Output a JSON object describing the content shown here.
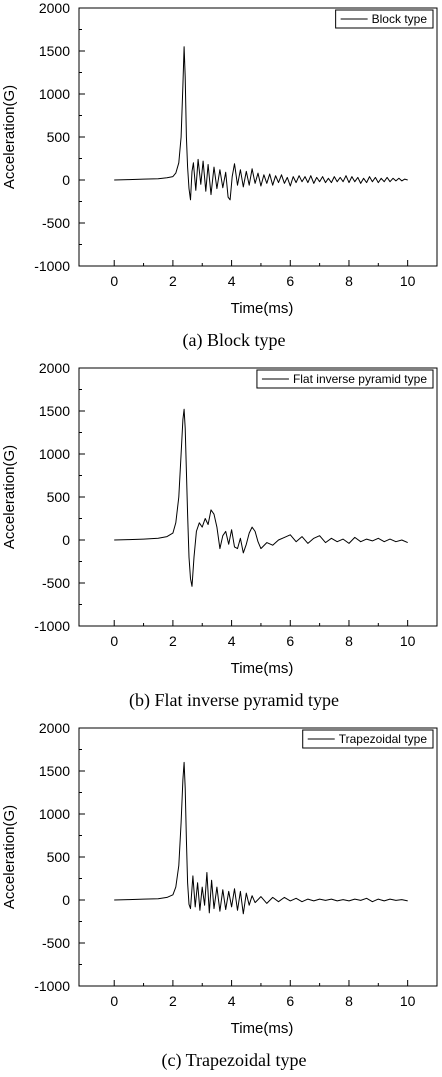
{
  "charts": [
    {
      "caption": "(a)  Block type"
    },
    {
      "caption": "(b) Flat inverse pyramid type"
    },
    {
      "caption": "(c) Trapezoidal type"
    }
  ],
  "chart_data": [
    {
      "type": "line",
      "xlabel": "Time(ms)",
      "ylabel": "Acceleration(G)",
      "xlim": [
        -1.2,
        11.0
      ],
      "ylim": [
        -1000,
        2000
      ],
      "xticks": [
        0,
        2,
        4,
        6,
        8,
        10
      ],
      "yticks": [
        -1000,
        -500,
        0,
        500,
        1000,
        1500,
        2000
      ],
      "legend_position": "top-right",
      "grid": false,
      "series": [
        {
          "name": "Block type",
          "color": "#000000",
          "x": [
            0,
            0.5,
            1,
            1.5,
            1.8,
            2.0,
            2.1,
            2.2,
            2.28,
            2.34,
            2.38,
            2.42,
            2.46,
            2.5,
            2.55,
            2.6,
            2.65,
            2.7,
            2.78,
            2.86,
            2.95,
            3.03,
            3.12,
            3.2,
            3.3,
            3.4,
            3.5,
            3.6,
            3.7,
            3.8,
            3.88,
            3.95,
            4.02,
            4.1,
            4.2,
            4.3,
            4.4,
            4.5,
            4.6,
            4.7,
            4.8,
            4.9,
            5.0,
            5.1,
            5.2,
            5.3,
            5.4,
            5.5,
            5.6,
            5.7,
            5.8,
            5.9,
            6.0,
            6.1,
            6.2,
            6.3,
            6.4,
            6.5,
            6.6,
            6.7,
            6.8,
            6.9,
            7.0,
            7.1,
            7.2,
            7.3,
            7.4,
            7.5,
            7.6,
            7.7,
            7.8,
            7.9,
            8.0,
            8.1,
            8.2,
            8.3,
            8.4,
            8.5,
            8.6,
            8.7,
            8.8,
            8.9,
            9.0,
            9.1,
            9.2,
            9.3,
            9.4,
            9.5,
            9.6,
            9.7,
            9.8,
            9.9,
            10.0
          ],
          "y": [
            0,
            5,
            10,
            15,
            25,
            40,
            80,
            200,
            500,
            1100,
            1550,
            1200,
            500,
            150,
            -100,
            -230,
            100,
            200,
            -120,
            240,
            -50,
            220,
            -130,
            180,
            -170,
            150,
            -100,
            120,
            -90,
            90,
            -200,
            -230,
            40,
            190,
            -60,
            120,
            -80,
            100,
            -60,
            130,
            -40,
            80,
            -70,
            60,
            -40,
            70,
            -60,
            50,
            -30,
            60,
            -40,
            30,
            -70,
            40,
            -30,
            50,
            -20,
            40,
            -30,
            50,
            -40,
            30,
            -20,
            40,
            -30,
            20,
            -30,
            40,
            -20,
            30,
            -20,
            50,
            -30,
            40,
            -20,
            30,
            -40,
            20,
            -30,
            40,
            -20,
            30,
            -30,
            20,
            -20,
            30,
            -20,
            20,
            -10,
            20,
            -10,
            10,
            0
          ]
        }
      ]
    },
    {
      "type": "line",
      "xlabel": "Time(ms)",
      "ylabel": "Acceleration(G)",
      "xlim": [
        -1.2,
        11.0
      ],
      "ylim": [
        -1000,
        2000
      ],
      "xticks": [
        0,
        2,
        4,
        6,
        8,
        10
      ],
      "yticks": [
        -1000,
        -500,
        0,
        500,
        1000,
        1500,
        2000
      ],
      "legend_position": "top-right",
      "grid": false,
      "series": [
        {
          "name": "Flat inverse pyramid type",
          "color": "#000000",
          "x": [
            0,
            0.5,
            1,
            1.5,
            1.8,
            2.0,
            2.1,
            2.2,
            2.28,
            2.34,
            2.38,
            2.42,
            2.46,
            2.5,
            2.55,
            2.6,
            2.65,
            2.72,
            2.8,
            2.9,
            3.0,
            3.1,
            3.2,
            3.3,
            3.4,
            3.5,
            3.6,
            3.7,
            3.8,
            3.9,
            4.0,
            4.1,
            4.2,
            4.3,
            4.4,
            4.5,
            4.6,
            4.7,
            4.8,
            4.9,
            5.0,
            5.2,
            5.4,
            5.6,
            5.8,
            6.0,
            6.2,
            6.4,
            6.6,
            6.8,
            7.0,
            7.2,
            7.4,
            7.6,
            7.8,
            8.0,
            8.2,
            8.4,
            8.6,
            8.8,
            9.0,
            9.2,
            9.4,
            9.6,
            9.8,
            10.0
          ],
          "y": [
            0,
            5,
            10,
            20,
            40,
            80,
            200,
            500,
            1000,
            1400,
            1520,
            1300,
            800,
            300,
            -200,
            -450,
            -540,
            -200,
            100,
            200,
            150,
            250,
            180,
            350,
            300,
            150,
            -100,
            50,
            100,
            -50,
            120,
            -80,
            -100,
            20,
            -150,
            -50,
            80,
            150,
            100,
            -20,
            -100,
            -30,
            -60,
            0,
            30,
            60,
            -20,
            40,
            -40,
            20,
            50,
            -30,
            20,
            -20,
            10,
            -40,
            30,
            -20,
            10,
            -10,
            20,
            -20,
            10,
            -20,
            0,
            -30
          ]
        }
      ]
    },
    {
      "type": "line",
      "xlabel": "Time(ms)",
      "ylabel": "Acceleration(G)",
      "xlim": [
        -1.2,
        11.0
      ],
      "ylim": [
        -1000,
        2000
      ],
      "xticks": [
        0,
        2,
        4,
        6,
        8,
        10
      ],
      "yticks": [
        -1000,
        -500,
        0,
        500,
        1000,
        1500,
        2000
      ],
      "legend_position": "top-right",
      "grid": false,
      "series": [
        {
          "name": "Trapezoidal type",
          "color": "#000000",
          "x": [
            0,
            0.5,
            1,
            1.5,
            1.8,
            2.0,
            2.1,
            2.2,
            2.28,
            2.34,
            2.38,
            2.42,
            2.46,
            2.5,
            2.55,
            2.6,
            2.68,
            2.76,
            2.84,
            2.92,
            3.0,
            3.08,
            3.16,
            3.24,
            3.32,
            3.4,
            3.5,
            3.6,
            3.7,
            3.8,
            3.9,
            4.0,
            4.1,
            4.2,
            4.3,
            4.4,
            4.5,
            4.6,
            4.7,
            4.8,
            5.0,
            5.2,
            5.4,
            5.6,
            5.8,
            6.0,
            6.2,
            6.4,
            6.6,
            6.8,
            7.0,
            7.2,
            7.4,
            7.6,
            7.8,
            8.0,
            8.2,
            8.4,
            8.6,
            8.8,
            9.0,
            9.2,
            9.4,
            9.6,
            9.8,
            10.0
          ],
          "y": [
            0,
            5,
            10,
            15,
            30,
            60,
            150,
            400,
            900,
            1400,
            1600,
            1300,
            700,
            200,
            -50,
            -100,
            280,
            -80,
            200,
            -120,
            150,
            -60,
            320,
            -150,
            230,
            -100,
            150,
            -130,
            120,
            -110,
            100,
            -80,
            130,
            -120,
            100,
            -160,
            80,
            -60,
            50,
            -30,
            40,
            -40,
            30,
            -20,
            30,
            -10,
            20,
            -20,
            10,
            -10,
            10,
            -5,
            10,
            -10,
            5,
            -10,
            10,
            -5,
            20,
            -20,
            10,
            -10,
            10,
            -5,
            5,
            -10
          ]
        }
      ]
    }
  ]
}
